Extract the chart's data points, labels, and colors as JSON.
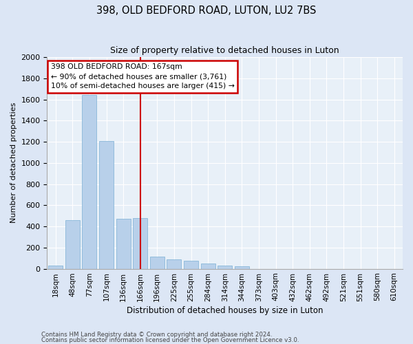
{
  "title1": "398, OLD BEDFORD ROAD, LUTON, LU2 7BS",
  "title2": "Size of property relative to detached houses in Luton",
  "xlabel": "Distribution of detached houses by size in Luton",
  "ylabel": "Number of detached properties",
  "categories": [
    "18sqm",
    "48sqm",
    "77sqm",
    "107sqm",
    "136sqm",
    "166sqm",
    "196sqm",
    "225sqm",
    "255sqm",
    "284sqm",
    "314sqm",
    "344sqm",
    "373sqm",
    "403sqm",
    "432sqm",
    "462sqm",
    "492sqm",
    "521sqm",
    "551sqm",
    "580sqm",
    "610sqm"
  ],
  "values": [
    30,
    460,
    1640,
    1210,
    470,
    480,
    115,
    90,
    75,
    50,
    30,
    20,
    0,
    0,
    0,
    0,
    0,
    0,
    0,
    0,
    0
  ],
  "bar_color": "#b8d0ea",
  "bar_edge_color": "#7aafd4",
  "vline_x": 5,
  "vline_color": "#cc0000",
  "annotation_line1": "398 OLD BEDFORD ROAD: 167sqm",
  "annotation_line2": "← 90% of detached houses are smaller (3,761)",
  "annotation_line3": "10% of semi-detached houses are larger (415) →",
  "annotation_box_edgecolor": "#cc0000",
  "ylim": [
    0,
    2000
  ],
  "yticks": [
    0,
    200,
    400,
    600,
    800,
    1000,
    1200,
    1400,
    1600,
    1800,
    2000
  ],
  "footer1": "Contains HM Land Registry data © Crown copyright and database right 2024.",
  "footer2": "Contains public sector information licensed under the Open Government Licence v3.0.",
  "bg_color": "#dce6f5",
  "plot_bg_color": "#e8f0f8"
}
